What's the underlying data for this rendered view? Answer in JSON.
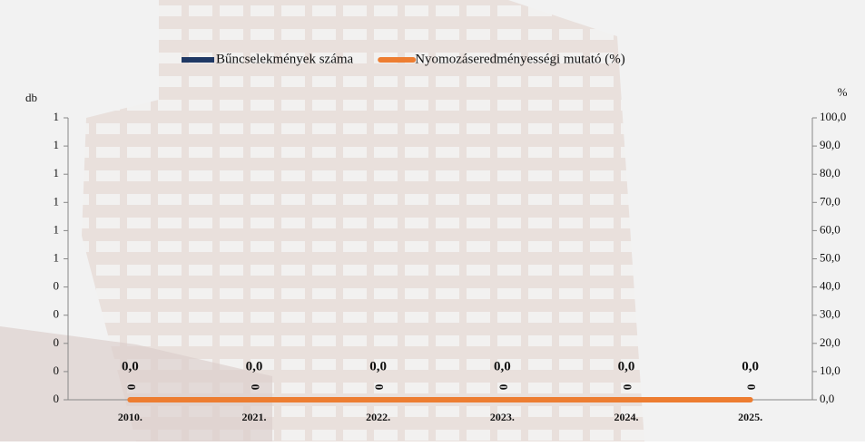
{
  "chart_data": {
    "type": "combo",
    "y_label": "db",
    "y2_label": "%",
    "categories": [
      "2010.",
      "2021.",
      "2022.",
      "2023.",
      "2024.",
      "2025."
    ],
    "series": [
      {
        "name": "Bűncselekmények száma",
        "type": "bar",
        "color": "#1f3864",
        "values": [
          0,
          0,
          0,
          0,
          0,
          0
        ],
        "value_labels": [
          "0,0",
          "0,0",
          "0,0",
          "0,0",
          "0,0",
          "0,0"
        ]
      },
      {
        "name": "Nyomozáseredményességi mutató (%)",
        "type": "line",
        "color": "#ed7d31",
        "axis": "y2",
        "values": [
          0,
          0,
          0,
          0,
          0,
          0
        ]
      }
    ],
    "ylim": [
      0,
      1
    ],
    "yticks": [
      {
        "value": 0,
        "label": "0"
      },
      {
        "value": 0.1,
        "label": "0"
      },
      {
        "value": 0.2,
        "label": "0"
      },
      {
        "value": 0.3,
        "label": "0"
      },
      {
        "value": 0.4,
        "label": "0"
      },
      {
        "value": 0.5,
        "label": "1"
      },
      {
        "value": 0.6,
        "label": "1"
      },
      {
        "value": 0.7,
        "label": "1"
      },
      {
        "value": 0.8,
        "label": "1"
      },
      {
        "value": 0.9,
        "label": "1"
      },
      1
    ],
    "y2lim": [
      0,
      100
    ],
    "y2ticks": [
      {
        "value": 0,
        "label": "0,0"
      },
      {
        "value": 10,
        "label": "10,0"
      },
      {
        "value": 20,
        "label": "20,0"
      },
      {
        "value": 30,
        "label": "30,0"
      },
      {
        "value": 40,
        "label": "40,0"
      },
      {
        "value": 50,
        "label": "50,0"
      },
      {
        "value": 60,
        "label": "60,0"
      },
      {
        "value": 70,
        "label": "70,0"
      },
      {
        "value": 80,
        "label": "80,0"
      },
      {
        "value": 90,
        "label": "90,0"
      },
      {
        "value": 100,
        "label": "100,0"
      }
    ],
    "legend": "top"
  }
}
